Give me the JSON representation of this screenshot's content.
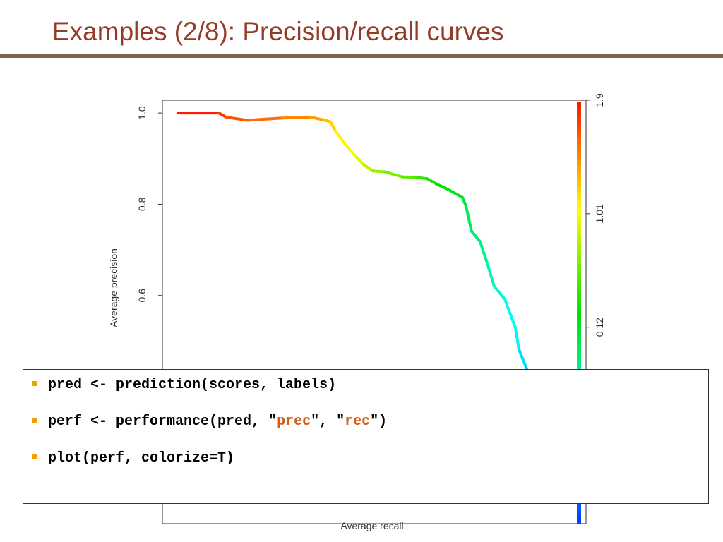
{
  "header": {
    "title": "Examples (2/8): Precision/recall curves"
  },
  "chart_data": {
    "type": "line",
    "colorize": true,
    "ylabel": "Average precision",
    "xlabel": "Average recall",
    "x": [
      0.0,
      0.104,
      0.122,
      0.176,
      0.266,
      0.338,
      0.374,
      0.388,
      0.401,
      0.428,
      0.455,
      0.473,
      0.496,
      0.527,
      0.572,
      0.608,
      0.635,
      0.662,
      0.689,
      0.725,
      0.734,
      0.748,
      0.77,
      0.788,
      0.806,
      0.833,
      0.86,
      0.869,
      0.887,
      0.896
    ],
    "values": [
      1.0,
      1.0,
      0.991,
      0.984,
      0.989,
      0.991,
      0.984,
      0.981,
      0.961,
      0.929,
      0.903,
      0.887,
      0.873,
      0.871,
      0.86,
      0.859,
      0.856,
      0.843,
      0.832,
      0.815,
      0.796,
      0.741,
      0.718,
      0.671,
      0.62,
      0.592,
      0.529,
      0.482,
      0.443,
      0.42
    ],
    "xlim": [
      -0.04,
      1.04
    ],
    "ylim": [
      0.1,
      1.028
    ],
    "yticks": [
      {
        "value": 0.6,
        "label": "0.6"
      },
      {
        "value": 0.8,
        "label": "0.8"
      },
      {
        "value": 1.0,
        "label": "1.0"
      }
    ],
    "y2lim": [
      -1.42,
      1.9
    ],
    "y2ticks": [
      {
        "value": 0.12,
        "label": "0.12"
      },
      {
        "value": 1.01,
        "label": "1.01"
      },
      {
        "value": 1.9,
        "label": "1.9"
      }
    ],
    "colorbar_colors": [
      "#ff1a00",
      "#ffff00",
      "#00e000",
      "#00ffff",
      "#0040ff"
    ]
  },
  "code": {
    "lines": [
      [
        {
          "text": "pred <- prediction(scores, labels)",
          "highlight": false
        }
      ],
      [
        {
          "text": "perf <- performance(pred, \"",
          "highlight": false
        },
        {
          "text": "prec",
          "highlight": true
        },
        {
          "text": "\", \"",
          "highlight": false
        },
        {
          "text": "rec",
          "highlight": true
        },
        {
          "text": "\")",
          "highlight": false
        }
      ],
      [
        {
          "text": "plot(perf, colorize=T)",
          "highlight": false
        }
      ]
    ]
  }
}
